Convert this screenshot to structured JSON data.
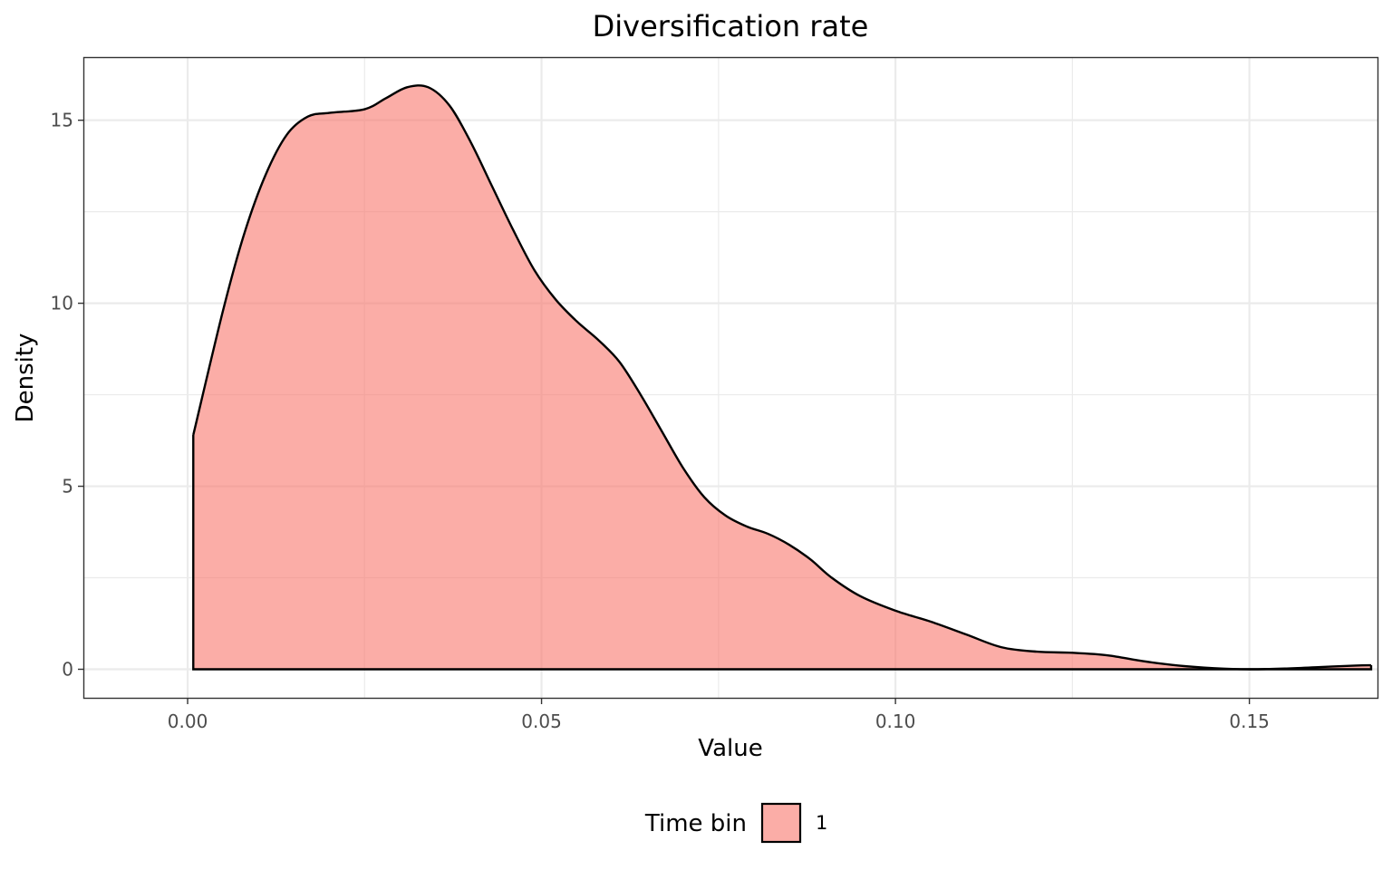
{
  "chart_data": {
    "type": "area",
    "title": "Diversification rate",
    "xlabel": "Value",
    "ylabel": "Density",
    "xlim": [
      -0.0146,
      0.1681
    ],
    "ylim": [
      -0.78,
      16.7
    ],
    "x_ticks": [
      0.0,
      0.05,
      0.1,
      0.15
    ],
    "x_tick_labels": [
      "0.00",
      "0.05",
      "0.10",
      "0.15"
    ],
    "y_ticks": [
      0,
      5,
      10,
      15
    ],
    "y_tick_labels": [
      "0",
      "5",
      "10",
      "15"
    ],
    "grid": true,
    "legend": {
      "title": "Time bin",
      "placement": "bottom",
      "entries": [
        "1"
      ]
    },
    "fill_color": "#F8766D",
    "fill_opacity": 0.6,
    "line_color": "#000000",
    "series": [
      {
        "name": "1",
        "x": [
          0.0008,
          0.005,
          0.008,
          0.011,
          0.014,
          0.017,
          0.02,
          0.025,
          0.028,
          0.031,
          0.034,
          0.037,
          0.04,
          0.043,
          0.046,
          0.049,
          0.052,
          0.055,
          0.058,
          0.061,
          0.064,
          0.067,
          0.07,
          0.073,
          0.076,
          0.079,
          0.082,
          0.085,
          0.088,
          0.091,
          0.095,
          0.1,
          0.105,
          0.11,
          0.115,
          0.12,
          0.125,
          0.13,
          0.135,
          0.14,
          0.145,
          0.15,
          0.155,
          0.16,
          0.165,
          0.1672
        ],
        "y": [
          6.4,
          9.8,
          11.9,
          13.5,
          14.6,
          15.1,
          15.2,
          15.3,
          15.6,
          15.9,
          15.9,
          15.4,
          14.4,
          13.2,
          12.0,
          10.9,
          10.1,
          9.5,
          9.0,
          8.4,
          7.5,
          6.5,
          5.5,
          4.7,
          4.2,
          3.9,
          3.7,
          3.4,
          3.0,
          2.5,
          2.0,
          1.6,
          1.3,
          0.95,
          0.6,
          0.48,
          0.45,
          0.38,
          0.22,
          0.1,
          0.03,
          0.0,
          0.02,
          0.06,
          0.1,
          0.11
        ]
      }
    ]
  }
}
